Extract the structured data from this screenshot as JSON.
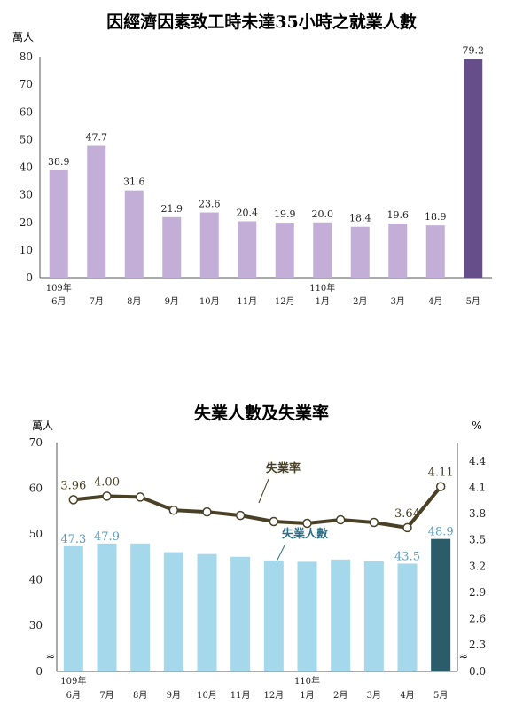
{
  "chart_data": [
    {
      "type": "bar",
      "title": "因經濟因素致工時未達35小時之就業人數",
      "ylabel": "萬人",
      "ylim": [
        0,
        80
      ],
      "yticks": [
        0,
        10,
        20,
        30,
        40,
        50,
        60,
        70,
        80
      ],
      "categories": [
        "6月",
        "7月",
        "8月",
        "9月",
        "10月",
        "11月",
        "12月",
        "1月",
        "2月",
        "3月",
        "4月",
        "5月"
      ],
      "year_labels": [
        {
          "index": 0,
          "label": "109年"
        },
        {
          "index": 7,
          "label": "110年"
        }
      ],
      "values": [
        38.9,
        47.7,
        31.6,
        21.9,
        23.6,
        20.4,
        19.9,
        20.0,
        18.4,
        19.6,
        18.9,
        79.2
      ],
      "value_labels": [
        "38.9",
        "47.7",
        "31.6",
        "21.9",
        "23.6",
        "20.4",
        "19.9",
        "20.0",
        "18.4",
        "19.6",
        "18.9",
        "79.2"
      ],
      "colors": {
        "bar": "#c3aed8",
        "highlight": "#654e8a"
      }
    },
    {
      "type": "bar",
      "title": "失業人數及失業率",
      "ylabel": "萬人",
      "ylabel_right": "%",
      "ylim": [
        0,
        70
      ],
      "yticks_left": [
        0,
        30,
        40,
        50,
        60,
        70
      ],
      "yticks_right": [
        "0.0",
        "2.3",
        "2.6",
        "2.9",
        "3.2",
        "3.5",
        "3.8",
        "4.1",
        "4.4"
      ],
      "y2lim": [
        0,
        4.4
      ],
      "categories": [
        "6月",
        "7月",
        "8月",
        "9月",
        "10月",
        "11月",
        "12月",
        "1月",
        "2月",
        "3月",
        "4月",
        "5月"
      ],
      "year_labels": [
        {
          "index": 0,
          "label": "109年"
        },
        {
          "index": 7,
          "label": "110年"
        }
      ],
      "series": [
        {
          "name": "失業人數",
          "type": "bar",
          "values": [
            47.3,
            47.9,
            47.9,
            46.0,
            45.6,
            45.0,
            44.2,
            43.9,
            44.4,
            44.0,
            43.5,
            48.9
          ],
          "labels": {
            "0": "47.3",
            "1": "47.9",
            "10": "43.5",
            "11": "48.9"
          },
          "color": "#a5d8ea",
          "highlight_color": "#2b5c6a",
          "label_color": "#5b9ec0"
        },
        {
          "name": "失業率",
          "type": "line",
          "values": [
            3.96,
            4.0,
            3.99,
            3.84,
            3.82,
            3.78,
            3.71,
            3.69,
            3.73,
            3.7,
            3.64,
            4.11
          ],
          "labels": {
            "0": "3.96",
            "1": "4.00",
            "10": "3.64",
            "11": "4.11"
          },
          "color": "#4a4026",
          "label_color": "#4a4026"
        }
      ],
      "break_mark": "≈"
    }
  ]
}
